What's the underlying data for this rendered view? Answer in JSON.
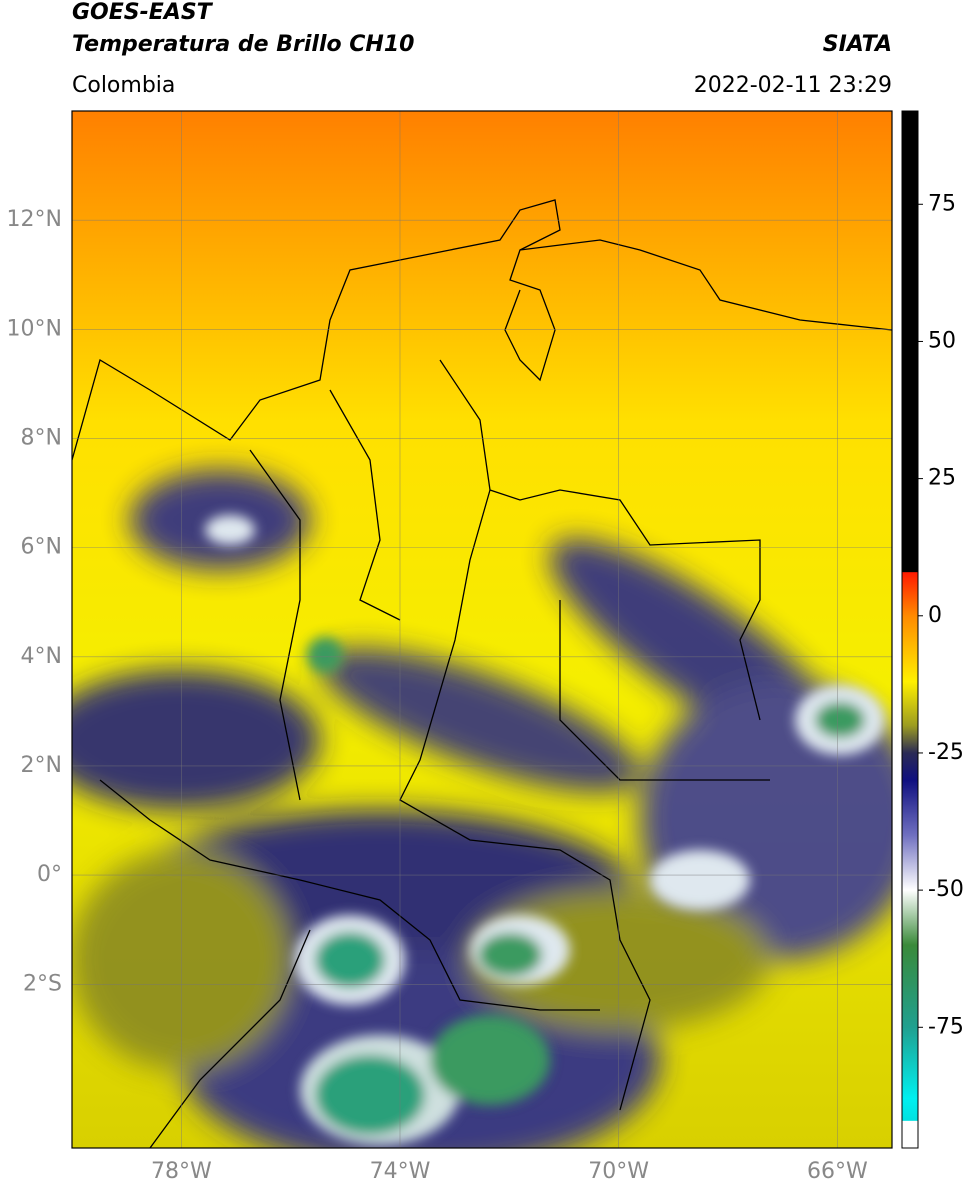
{
  "header": {
    "line1": "GOES-EAST",
    "line2": "Temperatura de Brillo CH10",
    "region": "Colombia",
    "source": "SIATA",
    "datetime": "2022-02-11 23:29"
  },
  "map": {
    "lonlim": [
      -80,
      -65
    ],
    "latlim": [
      -5,
      14
    ],
    "lat_ticks": [
      {
        "value": 12,
        "label": "12°N"
      },
      {
        "value": 10,
        "label": "10°N"
      },
      {
        "value": 8,
        "label": "8°N"
      },
      {
        "value": 6,
        "label": "6°N"
      },
      {
        "value": 4,
        "label": "4°N"
      },
      {
        "value": 2,
        "label": "2°N"
      },
      {
        "value": 0,
        "label": "0°"
      },
      {
        "value": -2,
        "label": "2°S"
      }
    ],
    "lon_ticks": [
      {
        "value": -78,
        "label": "78°W"
      },
      {
        "value": -74,
        "label": "74°W"
      },
      {
        "value": -70,
        "label": "70°W"
      },
      {
        "value": -66,
        "label": "66°W"
      }
    ]
  },
  "colorbar": {
    "lim": [
      -97,
      92
    ],
    "ticks": [
      75,
      50,
      25,
      0,
      -25,
      -50,
      -75
    ],
    "stops": [
      {
        "value": 92,
        "color": "#000000"
      },
      {
        "value": 8,
        "color": "#000000"
      },
      {
        "value": 7.9,
        "color": "#ff1a00"
      },
      {
        "value": 0,
        "color": "#ff8a00"
      },
      {
        "value": -12,
        "color": "#fff000"
      },
      {
        "value": -20,
        "color": "#9c9c20"
      },
      {
        "value": -25,
        "color": "#2a2a55"
      },
      {
        "value": -30,
        "color": "#101080"
      },
      {
        "value": -40,
        "color": "#7070c0"
      },
      {
        "value": -50,
        "color": "#ffffff"
      },
      {
        "value": -60,
        "color": "#3a8a3a"
      },
      {
        "value": -75,
        "color": "#20a090"
      },
      {
        "value": -88,
        "color": "#00f0f0"
      },
      {
        "value": -92,
        "color": "#00e0e0"
      },
      {
        "value": -92.1,
        "color": "#ffffff"
      },
      {
        "value": -97,
        "color": "#ffffff"
      }
    ]
  }
}
